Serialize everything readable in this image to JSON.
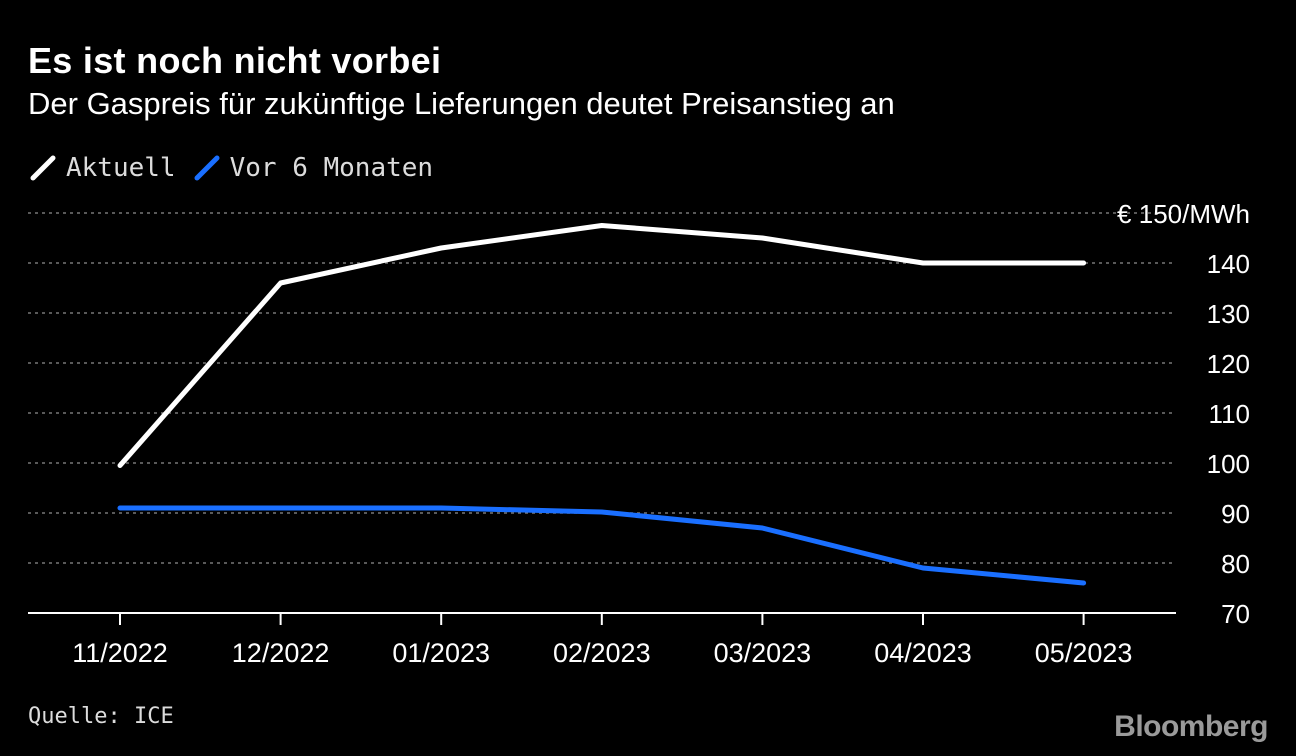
{
  "header": {
    "title": "Es ist noch nicht vorbei",
    "subtitle": "Der Gaspreis für zukünftige Lieferungen deutet Preisanstieg an"
  },
  "legend": [
    {
      "label": "Aktuell",
      "color": "#ffffff",
      "icon": "slash-line-icon"
    },
    {
      "label": "Vor 6 Monaten",
      "color": "#1a6fff",
      "icon": "slash-line-icon"
    }
  ],
  "chart_data": {
    "type": "line",
    "title": "Es ist noch nicht vorbei",
    "subtitle": "Der Gaspreis für zukünftige Lieferungen deutet Preisanstieg an",
    "x": [
      "11/2022",
      "12/2022",
      "01/2023",
      "02/2023",
      "03/2023",
      "04/2023",
      "05/2023"
    ],
    "series": [
      {
        "name": "Aktuell",
        "color": "#ffffff",
        "values": [
          99.5,
          136,
          143,
          147.5,
          145,
          140,
          140
        ]
      },
      {
        "name": "Vor 6 Monaten",
        "color": "#1a6fff",
        "values": [
          91,
          91,
          91,
          90.2,
          87,
          79,
          76
        ]
      }
    ],
    "ylim": [
      70,
      150
    ],
    "yticks": [
      70,
      80,
      90,
      100,
      110,
      120,
      130,
      140,
      150
    ],
    "ytick_labels": [
      "70",
      "80",
      "90",
      "100",
      "110",
      "120",
      "130",
      "140",
      "€ 150/MWh"
    ],
    "y_axis_position": "right",
    "grid": true,
    "legend_position": "top-left"
  },
  "footer": {
    "source": "Quelle: ICE",
    "brand": "Bloomberg"
  }
}
